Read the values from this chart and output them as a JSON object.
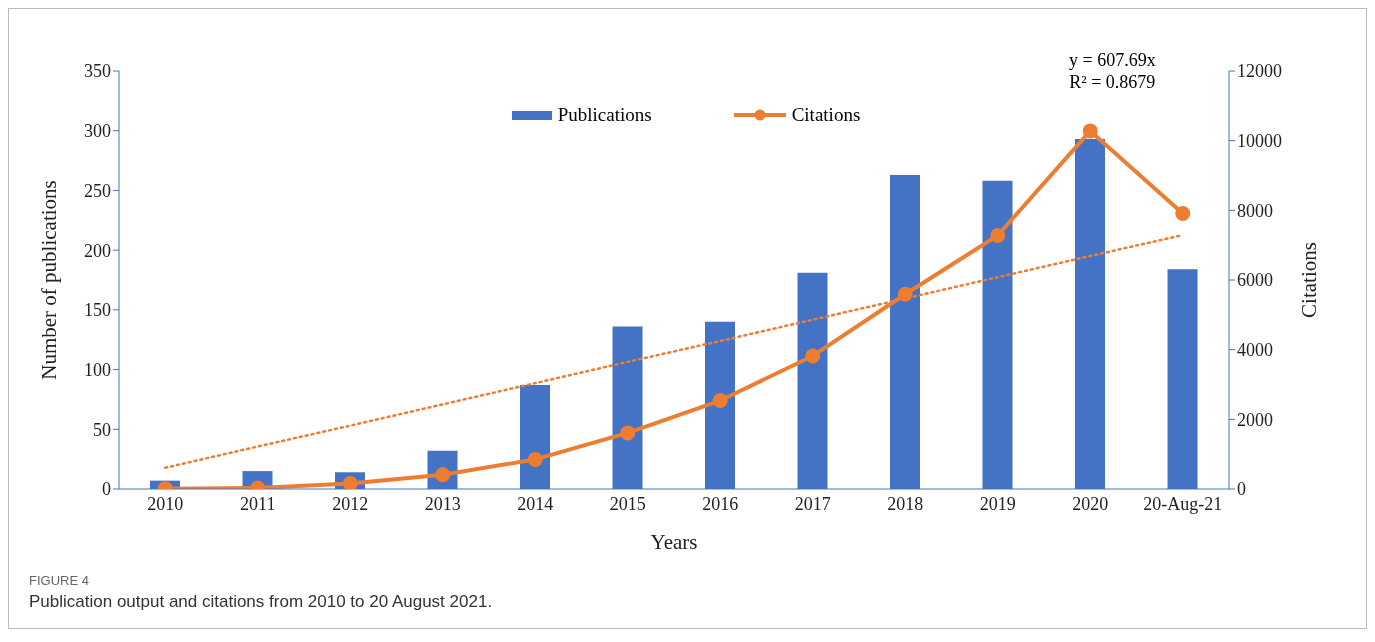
{
  "chart_data": {
    "type": "bar",
    "xlabel": "Years",
    "ylabel": "Number of publications",
    "y2label": "Citations",
    "categories": [
      "2010",
      "2011",
      "2012",
      "2013",
      "2014",
      "2015",
      "2016",
      "2017",
      "2018",
      "2019",
      "2020",
      "20-Aug-21"
    ],
    "series": [
      {
        "name": "Publications",
        "color": "#4472c4",
        "values": [
          7,
          15,
          14,
          32,
          87,
          136,
          140,
          181,
          263,
          258,
          293,
          184
        ]
      },
      {
        "name": "Citations",
        "type": "line",
        "axis": "y2",
        "color": "#ed7d31",
        "marker": "circle",
        "line_style": "solid",
        "values": [
          10,
          30,
          160,
          410,
          850,
          1610,
          2540,
          3820,
          5590,
          7280,
          10280,
          7910
        ]
      },
      {
        "type": "line",
        "axis": "y2",
        "color": "#ed7d31",
        "marker": "none",
        "line_style": "dotted",
        "values": [
          610,
          1220,
          1820,
          2430,
          3040,
          3650,
          4250,
          4860,
          5470,
          6080,
          6690,
          7290
        ]
      }
    ],
    "ylim": [
      0,
      350
    ],
    "yticks": [
      0,
      50,
      100,
      150,
      200,
      250,
      300,
      350
    ],
    "y2lim": [
      0,
      12000
    ],
    "y2ticks": [
      0,
      2000,
      4000,
      6000,
      8000,
      10000,
      12000
    ],
    "legend": "top",
    "annotations": [
      "y = 607.69x",
      "R² = 0.8679",
      "FIGURE 4",
      "Publication output and citations from 2010 to 20 August 2021."
    ]
  }
}
